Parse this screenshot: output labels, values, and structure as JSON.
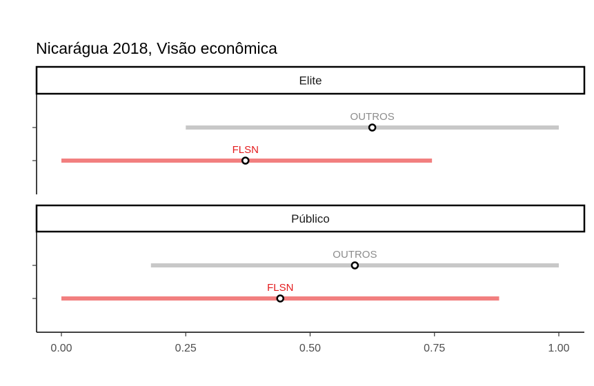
{
  "chart_data": {
    "type": "dot-range",
    "title": "Nicarágua 2018, Visão econômica",
    "xlabel": "",
    "ylabel": "",
    "xlim": [
      -0.05,
      1.05
    ],
    "x_ticks": [
      0.0,
      0.25,
      0.5,
      0.75,
      1.0
    ],
    "x_tick_labels": [
      "0.00",
      "0.25",
      "0.50",
      "0.75",
      "1.00"
    ],
    "grid": false,
    "colors": {
      "OUTROS": "#c8c8c8",
      "FLSN": "#f27f7f",
      "FLSN_label": "#e31a1c",
      "OUTROS_label": "#8c8c8c"
    },
    "panels": [
      {
        "name": "Elite",
        "series": [
          {
            "name": "OUTROS",
            "low": 0.25,
            "high": 1.0,
            "point": 0.625
          },
          {
            "name": "FLSN",
            "low": 0.0,
            "high": 0.745,
            "point": 0.37
          }
        ]
      },
      {
        "name": "Público",
        "series": [
          {
            "name": "OUTROS",
            "low": 0.18,
            "high": 1.0,
            "point": 0.59
          },
          {
            "name": "FLSN",
            "low": 0.0,
            "high": 0.88,
            "point": 0.44
          }
        ]
      }
    ]
  }
}
